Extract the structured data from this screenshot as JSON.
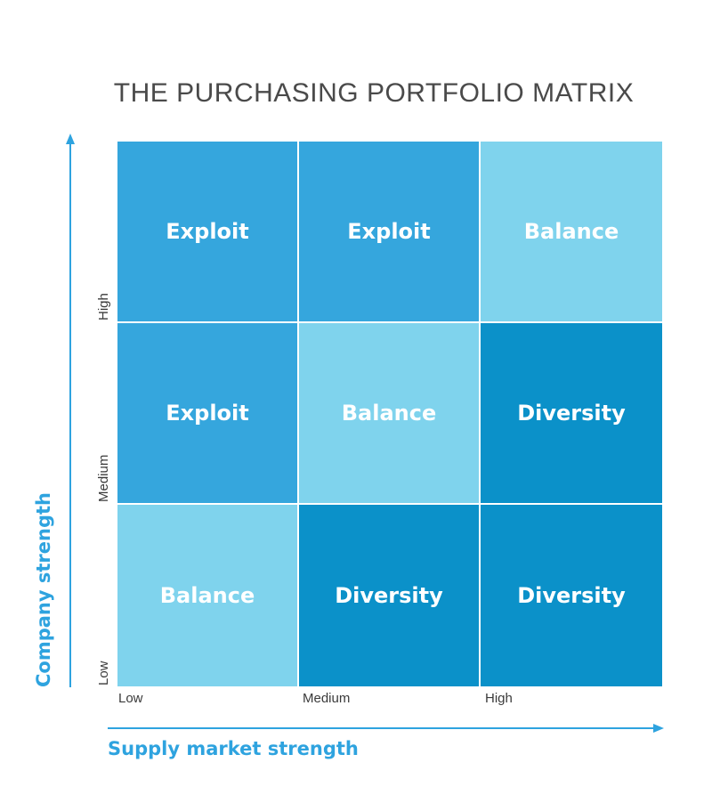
{
  "title": "THE PURCHASING PORTFOLIO MATRIX",
  "y_axis": {
    "label": "Company strength",
    "ticks": [
      "High",
      "Medium",
      "Low"
    ]
  },
  "x_axis": {
    "label": "Supply market strength",
    "ticks": [
      "Low",
      "Medium",
      "High"
    ]
  },
  "colors": {
    "exploit": "#35a6dd",
    "balance": "#7fd3ed",
    "diversity": "#0b91c9",
    "axis": "#2ea3df",
    "title": "#4a4a4a"
  },
  "matrix": [
    [
      {
        "label": "Exploit",
        "kind": "exploit"
      },
      {
        "label": "Exploit",
        "kind": "exploit"
      },
      {
        "label": "Balance",
        "kind": "balance"
      }
    ],
    [
      {
        "label": "Exploit",
        "kind": "exploit"
      },
      {
        "label": "Balance",
        "kind": "balance"
      },
      {
        "label": "Diversity",
        "kind": "diversity"
      }
    ],
    [
      {
        "label": "Balance",
        "kind": "balance"
      },
      {
        "label": "Diversity",
        "kind": "diversity"
      },
      {
        "label": "Diversity",
        "kind": "diversity"
      }
    ]
  ]
}
